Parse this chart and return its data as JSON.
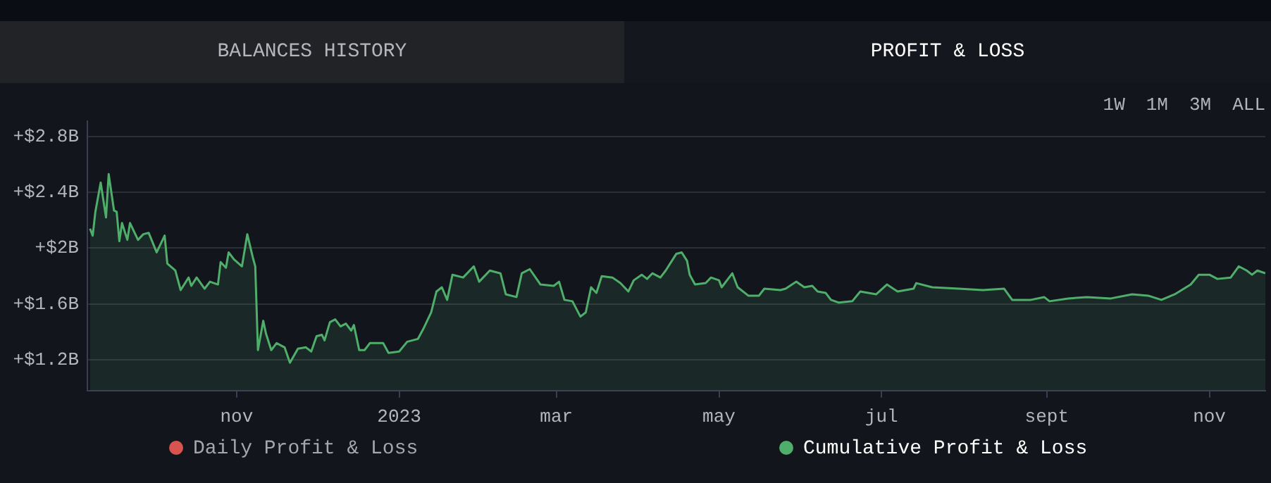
{
  "chart_data": {
    "type": "area",
    "annotations": [
      "BALANCES HISTORY",
      "PROFIT & LOSS",
      "1W",
      "1M",
      "3M",
      "ALL"
    ],
    "x": [
      "2022-09-07",
      "2022-09-08",
      "2022-09-09",
      "2022-09-11",
      "2022-09-13",
      "2022-09-14",
      "2022-09-16",
      "2022-09-17",
      "2022-09-18",
      "2022-09-19",
      "2022-09-21",
      "2022-09-22",
      "2022-09-25",
      "2022-09-27",
      "2022-09-29",
      "2022-10-02",
      "2022-10-05",
      "2022-10-06",
      "2022-10-09",
      "2022-10-11",
      "2022-10-14",
      "2022-10-15",
      "2022-10-17",
      "2022-10-20",
      "2022-10-22",
      "2022-10-25",
      "2022-10-26",
      "2022-10-28",
      "2022-10-29",
      "2022-10-31",
      "2022-11-03",
      "2022-11-05",
      "2022-11-07",
      "2022-11-08",
      "2022-11-09",
      "2022-11-11",
      "2022-11-12",
      "2022-11-14",
      "2022-11-16",
      "2022-11-19",
      "2022-11-21",
      "2022-11-24",
      "2022-11-27",
      "2022-11-29",
      "2022-12-01",
      "2022-12-03",
      "2022-12-04",
      "2022-12-06",
      "2022-12-08",
      "2022-12-10",
      "2022-12-12",
      "2022-12-14",
      "2022-12-15",
      "2022-12-17",
      "2022-12-19",
      "2022-12-21",
      "2022-12-26",
      "2022-12-28",
      "2023-01-01",
      "2023-01-04",
      "2023-01-08",
      "2023-01-10",
      "2023-01-13",
      "2023-01-15",
      "2023-01-17",
      "2023-01-19",
      "2023-01-21",
      "2023-01-25",
      "2023-01-29",
      "2023-01-31",
      "2023-02-04",
      "2023-02-08",
      "2023-02-10",
      "2023-02-14",
      "2023-02-16",
      "2023-02-19",
      "2023-02-23",
      "2023-02-28",
      "2023-03-02",
      "2023-03-04",
      "2023-03-07",
      "2023-03-10",
      "2023-03-12",
      "2023-03-14",
      "2023-03-16",
      "2023-03-18",
      "2023-03-22",
      "2023-03-25",
      "2023-03-28",
      "2023-03-30",
      "2023-04-02",
      "2023-04-04",
      "2023-04-06",
      "2023-04-09",
      "2023-04-11",
      "2023-04-15",
      "2023-04-17",
      "2023-04-19",
      "2023-04-20",
      "2023-04-22",
      "2023-04-26",
      "2023-04-28",
      "2023-05-01",
      "2023-05-02",
      "2023-05-06",
      "2023-05-08",
      "2023-05-12",
      "2023-05-16",
      "2023-05-18",
      "2023-05-24",
      "2023-05-26",
      "2023-05-30",
      "2023-06-02",
      "2023-06-05",
      "2023-06-07",
      "2023-06-10",
      "2023-06-12",
      "2023-06-15",
      "2023-06-20",
      "2023-06-23",
      "2023-06-29",
      "2023-07-03",
      "2023-07-07",
      "2023-07-13",
      "2023-07-14",
      "2023-07-20",
      "2023-07-30",
      "2023-08-08",
      "2023-08-16",
      "2023-08-19",
      "2023-08-26",
      "2023-08-31",
      "2023-09-02",
      "2023-09-09",
      "2023-09-16",
      "2023-09-25",
      "2023-10-03",
      "2023-10-09",
      "2023-10-14",
      "2023-10-19",
      "2023-10-25",
      "2023-10-28",
      "2023-11-01",
      "2023-11-04",
      "2023-11-09",
      "2023-11-12",
      "2023-11-15",
      "2023-11-17",
      "2023-11-19",
      "2023-11-22"
    ],
    "series": [
      {
        "name": "Daily Profit & Loss",
        "color": "#d9534f",
        "values": [
          null,
          null,
          null,
          null,
          null,
          null,
          null,
          null,
          null,
          null,
          null,
          null,
          null,
          null,
          null,
          null,
          null,
          null,
          null,
          null,
          null,
          null,
          null,
          null,
          null,
          null,
          null,
          null,
          null,
          null,
          null,
          null,
          null,
          null,
          null,
          null,
          null,
          null,
          null,
          null,
          null,
          null,
          null,
          null,
          null,
          null,
          null,
          null,
          null,
          null,
          null,
          null,
          null,
          null,
          null,
          null,
          null,
          null,
          null,
          null,
          null,
          null,
          null,
          null,
          null,
          null,
          null,
          null,
          null,
          null,
          null,
          null,
          null,
          null,
          null,
          null,
          null,
          null,
          null,
          null,
          null,
          null,
          null,
          null,
          null,
          null,
          null,
          null,
          null,
          null,
          null,
          null,
          null,
          null,
          null,
          null,
          null,
          null,
          null,
          null,
          null,
          null,
          null,
          null,
          null,
          null,
          null,
          null,
          null,
          null,
          null,
          null,
          null,
          null,
          null,
          null,
          null,
          null,
          null,
          null,
          null,
          null,
          null,
          null,
          null,
          null,
          null,
          null,
          null,
          null,
          null,
          null,
          null,
          null,
          null,
          null,
          null,
          null,
          null,
          null,
          null,
          null,
          null,
          null,
          null,
          null,
          null,
          null,
          null,
          null
        ]
      },
      {
        "name": "Cumulative Profit & Loss",
        "color": "#4fae6a",
        "values": [
          2.14,
          2.09,
          2.26,
          2.47,
          2.22,
          2.53,
          2.27,
          2.26,
          2.05,
          2.18,
          2.06,
          2.18,
          2.06,
          2.1,
          2.11,
          1.97,
          2.09,
          1.89,
          1.84,
          1.7,
          1.79,
          1.73,
          1.79,
          1.71,
          1.76,
          1.74,
          1.9,
          1.86,
          1.97,
          1.92,
          1.87,
          2.1,
          1.94,
          1.87,
          1.27,
          1.48,
          1.39,
          1.27,
          1.32,
          1.29,
          1.18,
          1.28,
          1.29,
          1.26,
          1.37,
          1.38,
          1.34,
          1.47,
          1.49,
          1.44,
          1.46,
          1.41,
          1.45,
          1.27,
          1.27,
          1.32,
          1.32,
          1.25,
          1.26,
          1.33,
          1.35,
          1.42,
          1.54,
          1.69,
          1.72,
          1.63,
          1.81,
          1.79,
          1.87,
          1.76,
          1.84,
          1.82,
          1.67,
          1.65,
          1.82,
          1.85,
          1.74,
          1.73,
          1.76,
          1.63,
          1.62,
          1.51,
          1.54,
          1.72,
          1.68,
          1.8,
          1.79,
          1.75,
          1.69,
          1.77,
          1.81,
          1.78,
          1.82,
          1.79,
          1.84,
          1.96,
          1.97,
          1.91,
          1.81,
          1.74,
          1.75,
          1.79,
          1.77,
          1.72,
          1.82,
          1.72,
          1.66,
          1.66,
          1.71,
          1.7,
          1.71,
          1.76,
          1.72,
          1.73,
          1.69,
          1.68,
          1.63,
          1.61,
          1.62,
          1.69,
          1.67,
          1.74,
          1.69,
          1.71,
          1.75,
          1.72,
          1.71,
          1.7,
          1.71,
          1.63,
          1.63,
          1.65,
          1.62,
          1.64,
          1.65,
          1.64,
          1.67,
          1.66,
          1.63,
          1.67,
          1.74,
          1.81,
          1.81,
          1.78,
          1.79,
          1.87,
          1.84,
          1.81,
          1.84,
          1.82
        ]
      }
    ],
    "xlim": [
      "2022-09-06",
      "2023-11-22"
    ],
    "xticks": [
      {
        "value": "2022-11-01",
        "label": "nov"
      },
      {
        "value": "2023-01-01",
        "label": "2023"
      },
      {
        "value": "2023-03-01",
        "label": "mar"
      },
      {
        "value": "2023-05-01",
        "label": "may"
      },
      {
        "value": "2023-07-01",
        "label": "jul"
      },
      {
        "value": "2023-09-01",
        "label": "sept"
      },
      {
        "value": "2023-11-01",
        "label": "nov"
      }
    ],
    "ylim": [
      0.98,
      2.91
    ],
    "yticks": [
      {
        "value": 1.2,
        "label": "+$1.2B"
      },
      {
        "value": 1.6,
        "label": "+$1.6B"
      },
      {
        "value": 2,
        "label": "+$2B"
      },
      {
        "value": 2.4,
        "label": "+$2.4B"
      },
      {
        "value": 2.8,
        "label": "+$2.8B"
      }
    ],
    "grid": "y",
    "legend": "bottom",
    "marker": "none",
    "line_style": "solid"
  }
}
